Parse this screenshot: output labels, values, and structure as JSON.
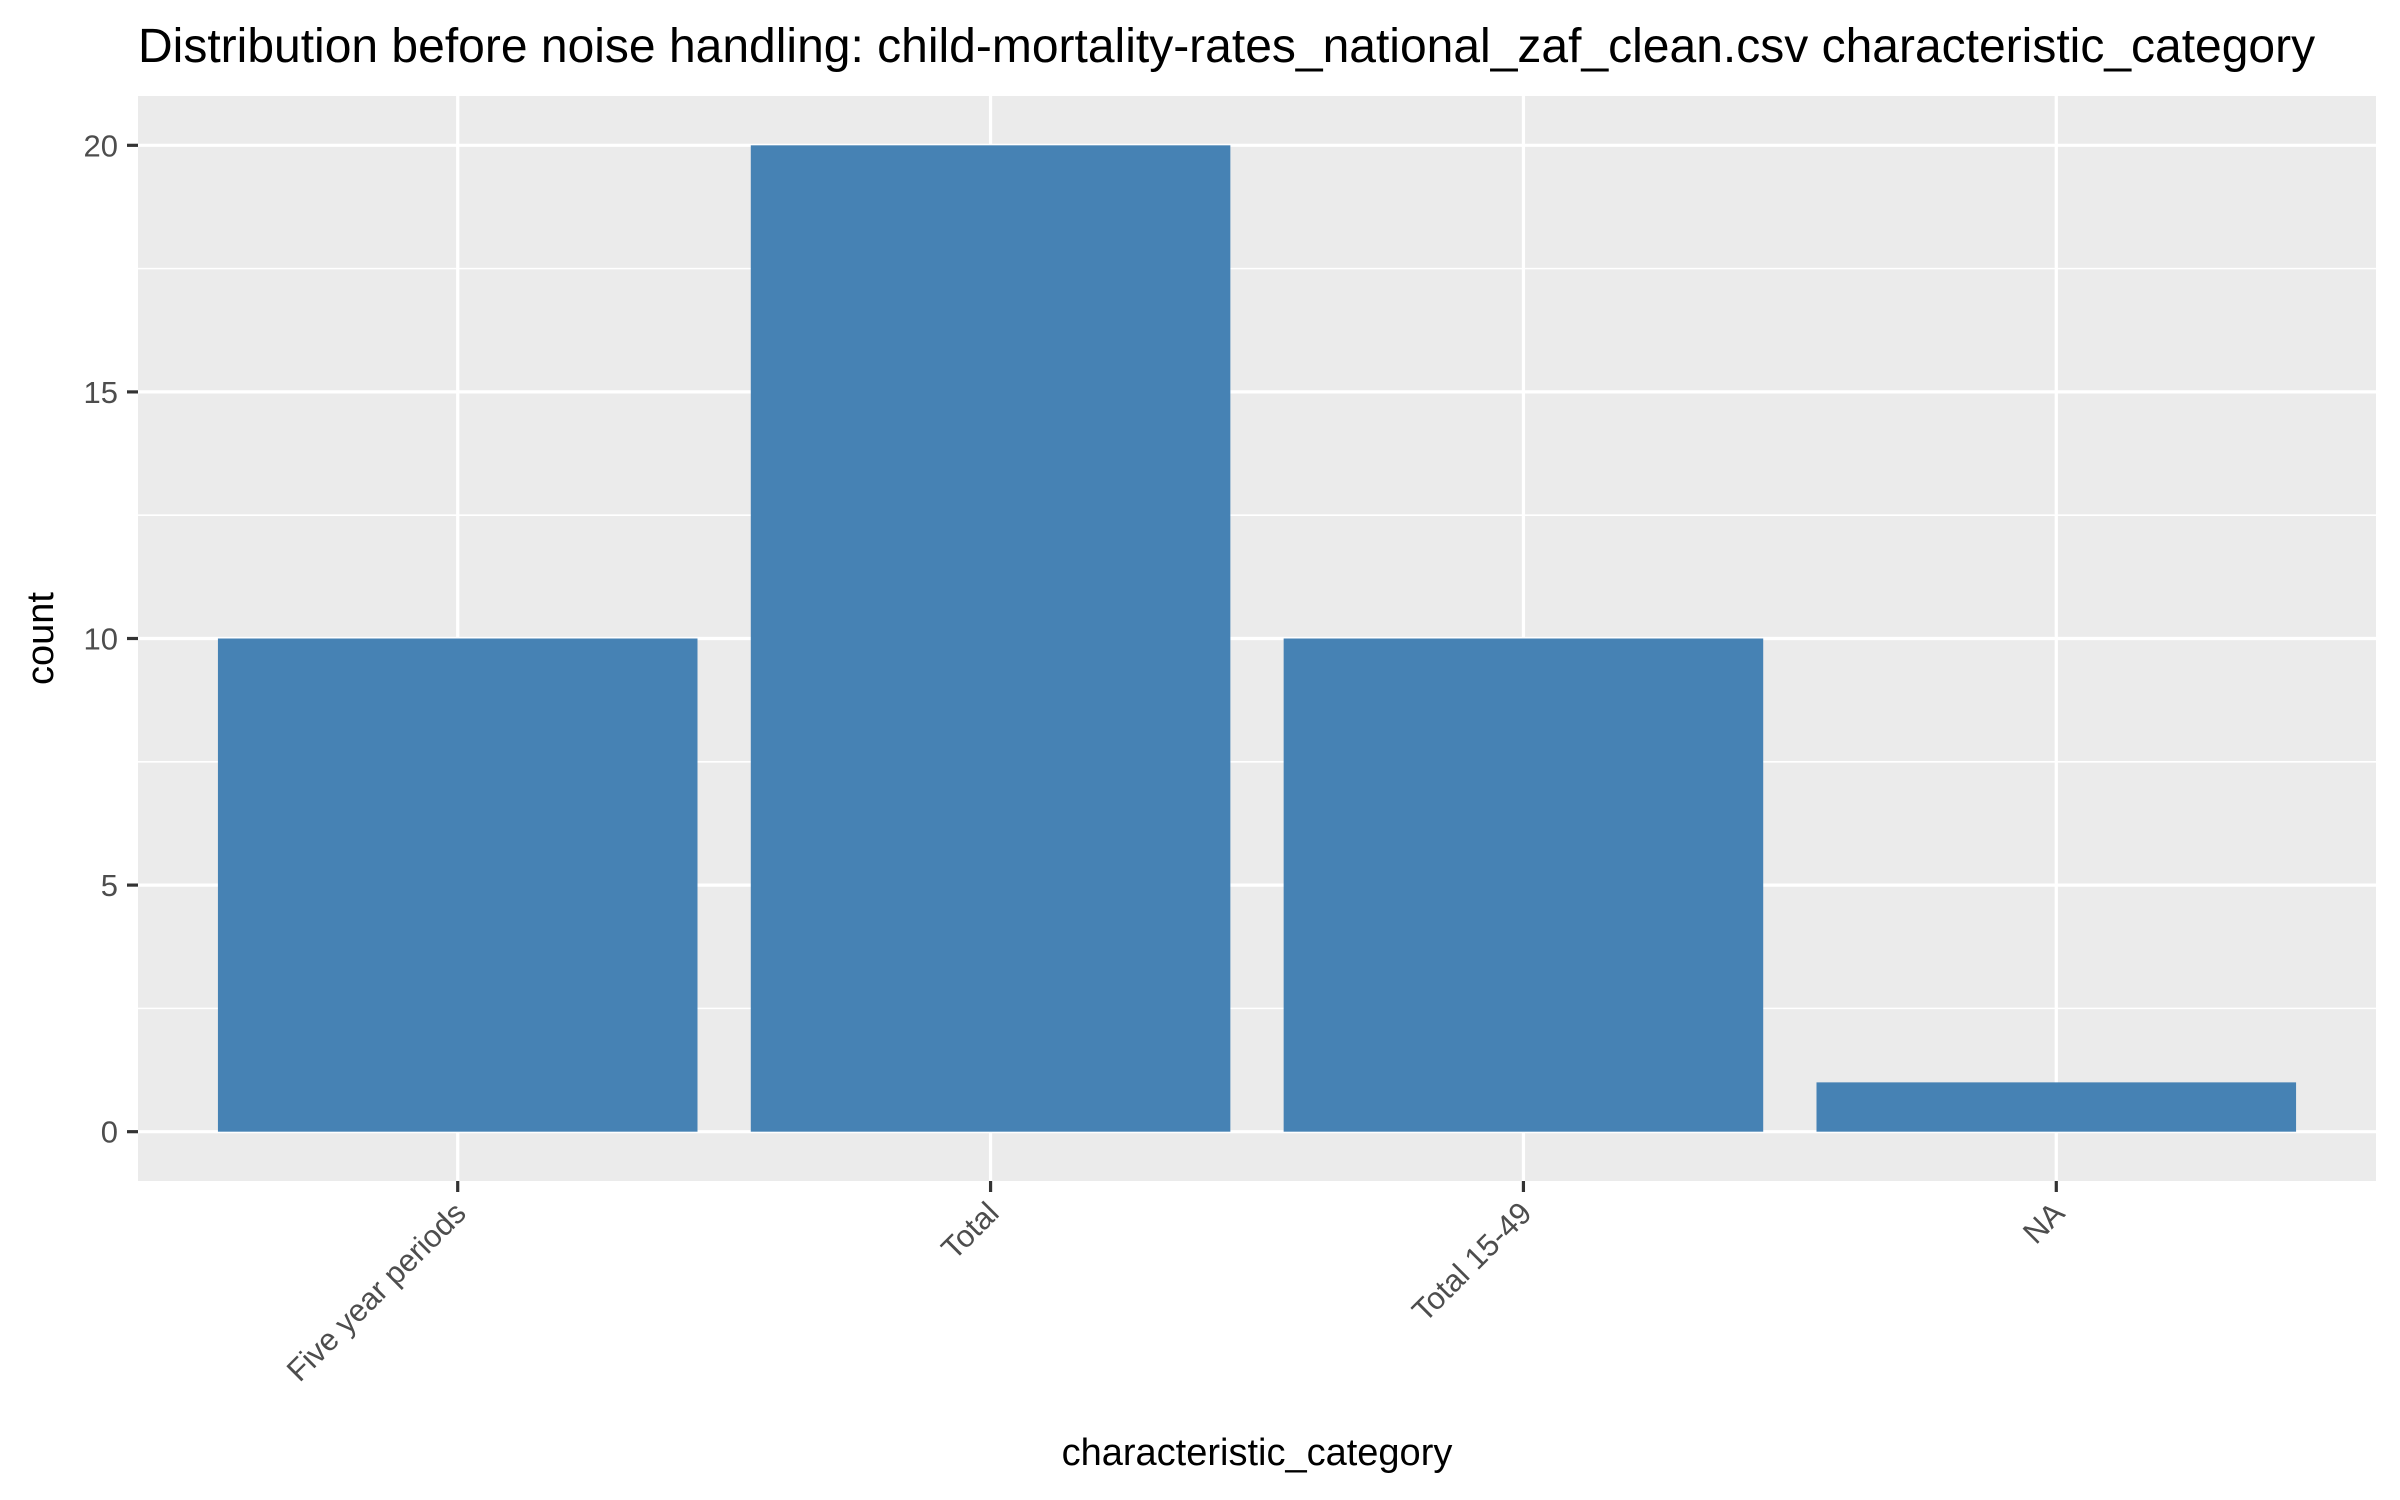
{
  "chart_data": {
    "type": "bar",
    "title": "Distribution before noise handling: child-mortality-rates_national_zaf_clean.csv characteristic_category",
    "xlabel": "characteristic_category",
    "ylabel": "count",
    "categories": [
      "Five year periods",
      "Total",
      "Total 15-49",
      "NA"
    ],
    "values": [
      10,
      20,
      10,
      1
    ],
    "ylim": [
      -1,
      21
    ],
    "yticks": [
      0,
      5,
      10,
      15,
      20
    ],
    "grid": true,
    "legend": "none",
    "colors": {
      "bar": "#4682b4",
      "panel": "#ebebeb",
      "grid": "#ffffff",
      "tick_text": "#4d4d4d"
    }
  }
}
